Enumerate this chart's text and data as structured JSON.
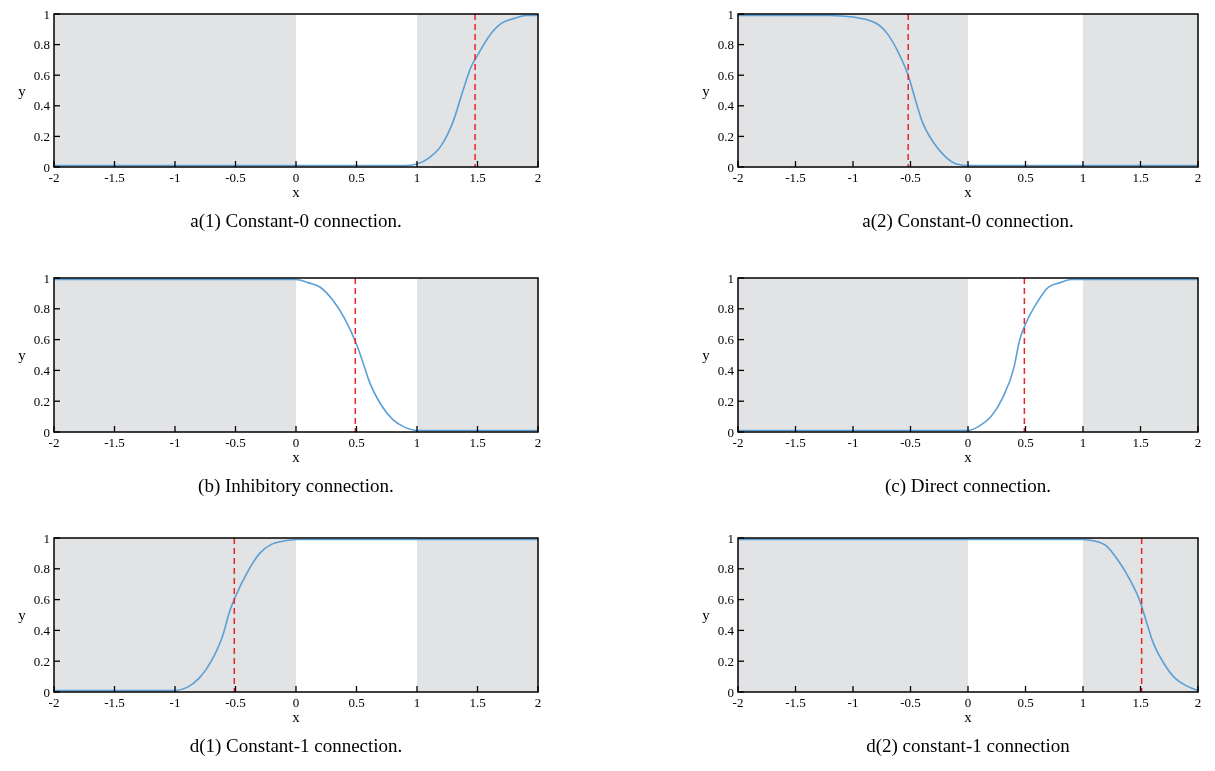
{
  "chart_data": [
    {
      "type": "line",
      "title": "a(1) Constant-0 connection.",
      "xlabel": "x",
      "ylabel": "y",
      "x": [
        -2,
        0.9,
        1,
        1.1,
        1.2,
        1.3,
        1.38,
        1.45,
        1.5,
        1.6,
        1.7,
        1.8,
        1.9,
        2
      ],
      "series": [
        {
          "color": "#5b9fd6",
          "values": [
            0.01,
            0.01,
            0.02,
            0.06,
            0.14,
            0.3,
            0.5,
            0.66,
            0.73,
            0.86,
            0.94,
            0.97,
            0.99,
            0.99
          ]
        }
      ],
      "xlim": [
        -2,
        2
      ],
      "ylim": [
        0,
        1
      ],
      "xticks": [
        -2,
        -1.5,
        -1,
        -0.5,
        0,
        0.5,
        1,
        1.5,
        2
      ],
      "yticks": [
        0,
        0.2,
        0.4,
        0.6,
        0.8,
        1
      ],
      "bands": [
        {
          "axis": "x",
          "from": -2,
          "to": 0,
          "color": "#e1e3e4"
        },
        {
          "axis": "x",
          "from": 1,
          "to": 2,
          "color": "#e1e3e4"
        }
      ],
      "ref_lines": [
        {
          "axis": "x",
          "value": 1.48,
          "color": "#e8262a",
          "line_style": "dashed"
        }
      ]
    },
    {
      "type": "line",
      "title": "a(2) Constant-0 connection.",
      "xlabel": "x",
      "ylabel": "y",
      "x": [
        -2,
        -1.2,
        -1,
        -0.8,
        -0.7,
        -0.6,
        -0.52,
        -0.45,
        -0.4,
        -0.3,
        -0.2,
        -0.1,
        0,
        2
      ],
      "series": [
        {
          "color": "#5b9fd6",
          "values": [
            0.99,
            0.99,
            0.98,
            0.94,
            0.87,
            0.74,
            0.6,
            0.42,
            0.3,
            0.16,
            0.07,
            0.02,
            0.01,
            0.01
          ]
        }
      ],
      "xlim": [
        -2,
        2
      ],
      "ylim": [
        0,
        1
      ],
      "xticks": [
        -2,
        -1.5,
        -1,
        -0.5,
        0,
        0.5,
        1,
        1.5,
        2
      ],
      "yticks": [
        0,
        0.2,
        0.4,
        0.6,
        0.8,
        1
      ],
      "bands": [
        {
          "axis": "x",
          "from": -2,
          "to": 0,
          "color": "#e1e3e4"
        },
        {
          "axis": "x",
          "from": 1,
          "to": 2,
          "color": "#e1e3e4"
        }
      ],
      "ref_lines": [
        {
          "axis": "x",
          "value": -0.52,
          "color": "#e8262a",
          "line_style": "dashed"
        }
      ]
    },
    {
      "type": "line",
      "title": "(b) Inhibitory connection.",
      "xlabel": "x",
      "ylabel": "y",
      "x": [
        -2,
        0,
        0.1,
        0.2,
        0.3,
        0.4,
        0.5,
        0.55,
        0.6,
        0.7,
        0.8,
        0.9,
        1,
        2
      ],
      "series": [
        {
          "color": "#5b9fd6",
          "values": [
            0.99,
            0.99,
            0.97,
            0.94,
            0.86,
            0.74,
            0.57,
            0.46,
            0.34,
            0.18,
            0.08,
            0.03,
            0.01,
            0.01
          ]
        }
      ],
      "xlim": [
        -2,
        2
      ],
      "ylim": [
        0,
        1
      ],
      "xticks": [
        -2,
        -1.5,
        -1,
        -0.5,
        0,
        0.5,
        1,
        1.5,
        2
      ],
      "yticks": [
        0,
        0.2,
        0.4,
        0.6,
        0.8,
        1
      ],
      "bands": [
        {
          "axis": "x",
          "from": -2,
          "to": 0,
          "color": "#e1e3e4"
        },
        {
          "axis": "x",
          "from": 1,
          "to": 2,
          "color": "#e1e3e4"
        }
      ],
      "ref_lines": [
        {
          "axis": "x",
          "value": 0.49,
          "color": "#e8262a",
          "line_style": "dashed"
        }
      ]
    },
    {
      "type": "line",
      "title": "(c) Direct connection.",
      "xlabel": "x",
      "ylabel": "y",
      "x": [
        -2,
        0,
        0.1,
        0.2,
        0.3,
        0.4,
        0.45,
        0.5,
        0.6,
        0.7,
        0.8,
        0.9,
        1,
        2
      ],
      "series": [
        {
          "color": "#5b9fd6",
          "values": [
            0.01,
            0.01,
            0.04,
            0.1,
            0.22,
            0.42,
            0.6,
            0.7,
            0.84,
            0.94,
            0.97,
            0.99,
            0.99,
            0.99
          ]
        }
      ],
      "xlim": [
        -2,
        2
      ],
      "ylim": [
        0,
        1
      ],
      "xticks": [
        -2,
        -1.5,
        -1,
        -0.5,
        0,
        0.5,
        1,
        1.5,
        2
      ],
      "yticks": [
        0,
        0.2,
        0.4,
        0.6,
        0.8,
        1
      ],
      "bands": [
        {
          "axis": "x",
          "from": -2,
          "to": 0,
          "color": "#e1e3e4"
        },
        {
          "axis": "x",
          "from": 1,
          "to": 2,
          "color": "#e1e3e4"
        }
      ],
      "ref_lines": [
        {
          "axis": "x",
          "value": 0.49,
          "color": "#e8262a",
          "line_style": "dashed"
        }
      ]
    },
    {
      "type": "line",
      "title": "d(1) Constant-1 connection.",
      "xlabel": "x",
      "ylabel": "y",
      "x": [
        -2,
        -1,
        -0.9,
        -0.8,
        -0.7,
        -0.6,
        -0.55,
        -0.5,
        -0.4,
        -0.3,
        -0.2,
        -0.1,
        0,
        2
      ],
      "series": [
        {
          "color": "#5b9fd6",
          "values": [
            0.01,
            0.01,
            0.03,
            0.09,
            0.2,
            0.38,
            0.52,
            0.62,
            0.78,
            0.9,
            0.96,
            0.98,
            0.99,
            0.99
          ]
        }
      ],
      "xlim": [
        -2,
        2
      ],
      "ylim": [
        0,
        1
      ],
      "xticks": [
        -2,
        -1.5,
        -1,
        -0.5,
        0,
        0.5,
        1,
        1.5,
        2
      ],
      "yticks": [
        0,
        0.2,
        0.4,
        0.6,
        0.8,
        1
      ],
      "bands": [
        {
          "axis": "x",
          "from": -2,
          "to": 0,
          "color": "#e1e3e4"
        },
        {
          "axis": "x",
          "from": 1,
          "to": 2,
          "color": "#e1e3e4"
        }
      ],
      "ref_lines": [
        {
          "axis": "x",
          "value": -0.51,
          "color": "#e8262a",
          "line_style": "dashed"
        }
      ]
    },
    {
      "type": "line",
      "title": "d(2) constant-1 connection",
      "xlabel": "x",
      "ylabel": "y",
      "x": [
        -2,
        1,
        1.1,
        1.2,
        1.3,
        1.4,
        1.5,
        1.55,
        1.6,
        1.7,
        1.8,
        1.9,
        2
      ],
      "series": [
        {
          "color": "#5b9fd6",
          "values": [
            0.99,
            0.99,
            0.98,
            0.95,
            0.86,
            0.74,
            0.58,
            0.46,
            0.34,
            0.19,
            0.09,
            0.04,
            0.01
          ]
        }
      ],
      "xlim": [
        -2,
        2
      ],
      "ylim": [
        0,
        1
      ],
      "xticks": [
        -2,
        -1.5,
        -1,
        -0.5,
        0,
        0.5,
        1,
        1.5,
        2
      ],
      "yticks": [
        0,
        0.2,
        0.4,
        0.6,
        0.8,
        1
      ],
      "bands": [
        {
          "axis": "x",
          "from": -2,
          "to": 0,
          "color": "#e1e3e4"
        },
        {
          "axis": "x",
          "from": 1,
          "to": 2,
          "color": "#e1e3e4"
        }
      ],
      "ref_lines": [
        {
          "axis": "x",
          "value": 1.51,
          "color": "#e8262a",
          "line_style": "dashed"
        }
      ]
    }
  ]
}
